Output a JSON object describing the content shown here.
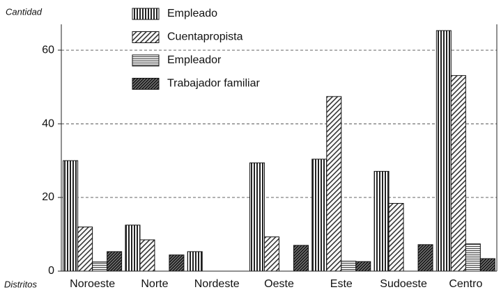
{
  "chart_data": {
    "type": "bar",
    "y_label": "Cantidad",
    "x_label": "Distritos",
    "categories": [
      "Noroeste",
      "Norte",
      "Nordeste",
      "Oeste",
      "Este",
      "Sudoeste",
      "Centro"
    ],
    "series": [
      {
        "name": "Empleado",
        "pattern": "vertical",
        "values": [
          30,
          12.5,
          5.3,
          29.4,
          30.4,
          27.1,
          65.3
        ]
      },
      {
        "name": "Cuentapropista",
        "pattern": "diagonal",
        "values": [
          12,
          8.5,
          0,
          9.3,
          47.4,
          18.4,
          53.1
        ]
      },
      {
        "name": "Empleador",
        "pattern": "horizontal",
        "values": [
          2.5,
          0,
          0,
          0,
          2.7,
          0,
          7.4
        ]
      },
      {
        "name": "Trabajador familiar",
        "pattern": "dense",
        "values": [
          5.3,
          4.4,
          0,
          7,
          2.6,
          7.2,
          3.4
        ]
      }
    ],
    "ylim": [
      0,
      67
    ],
    "yticks": [
      0,
      20,
      40,
      60
    ],
    "grid": true
  }
}
